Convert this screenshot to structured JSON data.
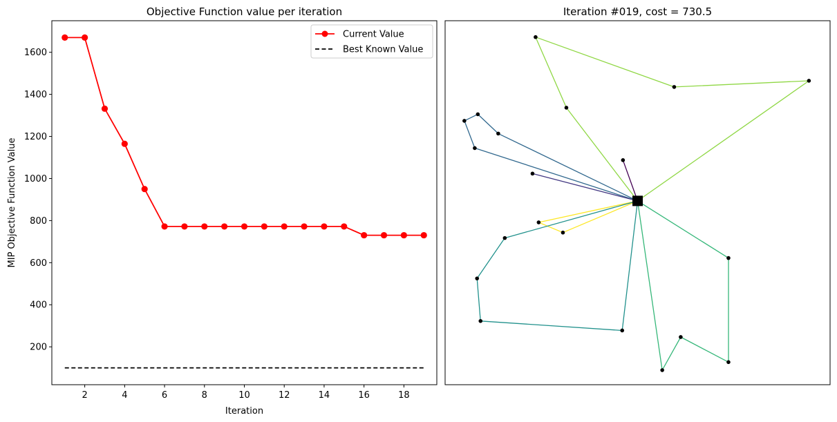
{
  "chart_data": [
    {
      "type": "line",
      "title": "Objective Function value per iteration",
      "xlabel": "Iteration",
      "ylabel": "MIP Objective Function Value",
      "xlim": [
        0.35,
        19.65
      ],
      "ylim": [
        20,
        1750
      ],
      "xticks": [
        2,
        4,
        6,
        8,
        10,
        12,
        14,
        16,
        18
      ],
      "yticks": [
        200,
        400,
        600,
        800,
        1000,
        1200,
        1400,
        1600
      ],
      "grid": false,
      "legend_position": "top-right",
      "series": [
        {
          "name": "Current Value",
          "color": "#ff0000",
          "marker": "circle",
          "x": [
            1,
            2,
            3,
            4,
            5,
            6,
            7,
            8,
            9,
            10,
            11,
            12,
            13,
            14,
            15,
            16,
            17,
            18,
            19
          ],
          "values": [
            1670,
            1670,
            1332,
            1165,
            950,
            772,
            772,
            772,
            772,
            772,
            772,
            772,
            772,
            772,
            772,
            730.5,
            730.5,
            730.5,
            730.5
          ]
        },
        {
          "name": "Best Known Value",
          "color": "#000000",
          "line_style": "dashed",
          "x": [
            1,
            19
          ],
          "values": [
            100,
            100
          ]
        }
      ]
    },
    {
      "type": "scatter",
      "title": "Iteration #019, cost = 730.5",
      "axes_visible": false,
      "xlim": [
        0,
        100
      ],
      "ylim": [
        0,
        100
      ],
      "depot": {
        "x": 50.0,
        "y": 50.5
      },
      "customers": [
        {
          "x": 23.5,
          "y": 95.5
        },
        {
          "x": 59.5,
          "y": 81.8
        },
        {
          "x": 94.5,
          "y": 83.5
        },
        {
          "x": 31.5,
          "y": 76.1
        },
        {
          "x": 8.5,
          "y": 74.3
        },
        {
          "x": 5.0,
          "y": 72.5
        },
        {
          "x": 13.8,
          "y": 69.0
        },
        {
          "x": 7.7,
          "y": 65.0
        },
        {
          "x": 22.7,
          "y": 58.0
        },
        {
          "x": 46.2,
          "y": 61.7
        },
        {
          "x": 24.3,
          "y": 44.6
        },
        {
          "x": 30.6,
          "y": 41.8
        },
        {
          "x": 15.5,
          "y": 40.3
        },
        {
          "x": 8.3,
          "y": 29.2
        },
        {
          "x": 9.2,
          "y": 17.5
        },
        {
          "x": 46.0,
          "y": 14.9
        },
        {
          "x": 73.6,
          "y": 34.8
        },
        {
          "x": 73.6,
          "y": 6.2
        },
        {
          "x": 61.2,
          "y": 13.1
        },
        {
          "x": 56.4,
          "y": 4.0
        }
      ],
      "routes": [
        {
          "color": "#8fd744",
          "stops": [
            {
              "x": 50.0,
              "y": 50.5
            },
            {
              "x": 31.5,
              "y": 76.1
            },
            {
              "x": 23.5,
              "y": 95.5
            },
            {
              "x": 59.5,
              "y": 81.8
            },
            {
              "x": 94.5,
              "y": 83.5
            },
            {
              "x": 50.0,
              "y": 50.5
            }
          ]
        },
        {
          "color": "#31688e",
          "stops": [
            {
              "x": 50.0,
              "y": 50.5
            },
            {
              "x": 7.7,
              "y": 65.0
            },
            {
              "x": 5.0,
              "y": 72.5
            },
            {
              "x": 8.5,
              "y": 74.3
            },
            {
              "x": 13.8,
              "y": 69.0
            },
            {
              "x": 50.0,
              "y": 50.5
            }
          ]
        },
        {
          "color": "#440154",
          "stops": [
            {
              "x": 50.0,
              "y": 50.5
            },
            {
              "x": 46.2,
              "y": 61.7
            },
            {
              "x": 50.0,
              "y": 50.5
            }
          ]
        },
        {
          "color": "#443983",
          "stops": [
            {
              "x": 50.0,
              "y": 50.5
            },
            {
              "x": 22.7,
              "y": 58.0
            },
            {
              "x": 50.0,
              "y": 50.5
            }
          ]
        },
        {
          "color": "#fde725",
          "stops": [
            {
              "x": 50.0,
              "y": 50.5
            },
            {
              "x": 24.3,
              "y": 44.6
            },
            {
              "x": 30.6,
              "y": 41.8
            },
            {
              "x": 50.0,
              "y": 50.5
            }
          ]
        },
        {
          "color": "#21918c",
          "stops": [
            {
              "x": 50.0,
              "y": 50.5
            },
            {
              "x": 15.5,
              "y": 40.3
            },
            {
              "x": 8.3,
              "y": 29.2
            },
            {
              "x": 9.2,
              "y": 17.5
            },
            {
              "x": 46.0,
              "y": 14.9
            },
            {
              "x": 50.0,
              "y": 50.5
            }
          ]
        },
        {
          "color": "#35b779",
          "stops": [
            {
              "x": 50.0,
              "y": 50.5
            },
            {
              "x": 73.6,
              "y": 34.8
            },
            {
              "x": 73.6,
              "y": 6.2
            },
            {
              "x": 61.2,
              "y": 13.1
            },
            {
              "x": 56.4,
              "y": 4.0
            },
            {
              "x": 50.0,
              "y": 50.5
            }
          ]
        }
      ]
    }
  ]
}
